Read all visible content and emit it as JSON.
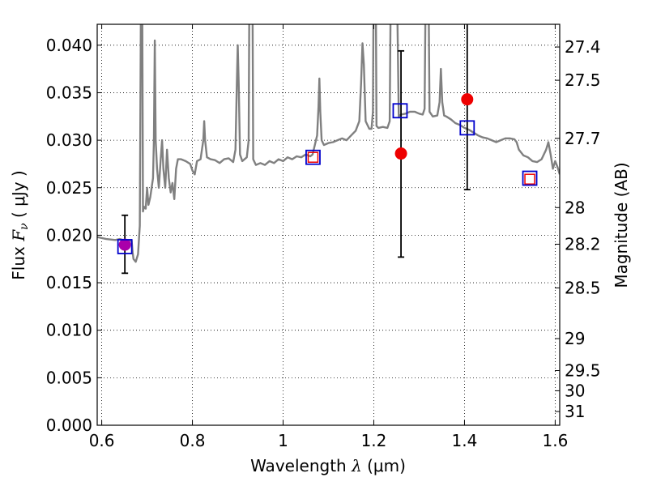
{
  "chart_data": {
    "type": "scatter",
    "xlabel": "Wavelength",
    "xlabel_symbol": "λ",
    "xlabel_unit": "(μm)",
    "ylabel_prefix": "Flux",
    "ylabel_symbol": "F",
    "ylabel_subscript": "ν",
    "ylabel_unit": "( μJy )",
    "y2label": "Magnitude (AB)",
    "xlim": [
      0.59,
      1.61
    ],
    "ylim": [
      0.0,
      0.0422
    ],
    "grid": true,
    "x_ticks": [
      {
        "value": 0.6,
        "label": "0.6"
      },
      {
        "value": 0.8,
        "label": "0.8"
      },
      {
        "value": 1.0,
        "label": "1"
      },
      {
        "value": 1.2,
        "label": "1.2"
      },
      {
        "value": 1.4,
        "label": "1.4"
      },
      {
        "value": 1.6,
        "label": "1.6"
      }
    ],
    "y_ticks": [
      {
        "value": 0.0,
        "label": "0.000"
      },
      {
        "value": 0.005,
        "label": "0.005"
      },
      {
        "value": 0.01,
        "label": "0.010"
      },
      {
        "value": 0.015,
        "label": "0.015"
      },
      {
        "value": 0.02,
        "label": "0.020"
      },
      {
        "value": 0.025,
        "label": "0.025"
      },
      {
        "value": 0.03,
        "label": "0.030"
      },
      {
        "value": 0.035,
        "label": "0.035"
      },
      {
        "value": 0.04,
        "label": "0.040"
      }
    ],
    "y2_ticks": [
      {
        "value": 27.4,
        "label": "27.4"
      },
      {
        "value": 27.5,
        "label": "27.5"
      },
      {
        "value": 27.7,
        "label": "27.7"
      },
      {
        "value": 28.0,
        "label": "28"
      },
      {
        "value": 28.2,
        "label": "28.2"
      },
      {
        "value": 28.5,
        "label": "28.5"
      },
      {
        "value": 29.0,
        "label": "29"
      },
      {
        "value": 29.5,
        "label": "29.5"
      },
      {
        "value": 30.0,
        "label": "30"
      },
      {
        "value": 31.0,
        "label": "31"
      }
    ],
    "model_spectrum": {
      "color": "#808080",
      "points": [
        [
          0.59,
          0.0198
        ],
        [
          0.61,
          0.0196
        ],
        [
          0.63,
          0.0195
        ],
        [
          0.64,
          0.0196
        ],
        [
          0.655,
          0.0194
        ],
        [
          0.662,
          0.0194
        ],
        [
          0.666,
          0.0195
        ],
        [
          0.668,
          0.0182
        ],
        [
          0.67,
          0.0175
        ],
        [
          0.675,
          0.0172
        ],
        [
          0.68,
          0.018
        ],
        [
          0.684,
          0.021
        ],
        [
          0.687,
          0.05
        ],
        [
          0.689,
          0.05
        ],
        [
          0.691,
          0.0225
        ],
        [
          0.693,
          0.023
        ],
        [
          0.697,
          0.0228
        ],
        [
          0.7,
          0.025
        ],
        [
          0.703,
          0.0232
        ],
        [
          0.707,
          0.024
        ],
        [
          0.71,
          0.025
        ],
        [
          0.713,
          0.026
        ],
        [
          0.715,
          0.03
        ],
        [
          0.717,
          0.0405
        ],
        [
          0.719,
          0.03
        ],
        [
          0.722,
          0.027
        ],
        [
          0.726,
          0.025
        ],
        [
          0.73,
          0.028
        ],
        [
          0.733,
          0.03
        ],
        [
          0.736,
          0.027
        ],
        [
          0.74,
          0.025
        ],
        [
          0.744,
          0.029
        ],
        [
          0.748,
          0.026
        ],
        [
          0.752,
          0.0245
        ],
        [
          0.756,
          0.0255
        ],
        [
          0.76,
          0.0238
        ],
        [
          0.764,
          0.027
        ],
        [
          0.768,
          0.028
        ],
        [
          0.775,
          0.028
        ],
        [
          0.785,
          0.0278
        ],
        [
          0.795,
          0.0275
        ],
        [
          0.8,
          0.0268
        ],
        [
          0.805,
          0.0264
        ],
        [
          0.81,
          0.0278
        ],
        [
          0.818,
          0.028
        ],
        [
          0.824,
          0.03
        ],
        [
          0.826,
          0.032
        ],
        [
          0.828,
          0.03
        ],
        [
          0.832,
          0.0282
        ],
        [
          0.84,
          0.028
        ],
        [
          0.85,
          0.0279
        ],
        [
          0.86,
          0.0276
        ],
        [
          0.87,
          0.028
        ],
        [
          0.88,
          0.0281
        ],
        [
          0.89,
          0.0277
        ],
        [
          0.895,
          0.029
        ],
        [
          0.898,
          0.036
        ],
        [
          0.9,
          0.04
        ],
        [
          0.902,
          0.036
        ],
        [
          0.905,
          0.0285
        ],
        [
          0.91,
          0.0278
        ],
        [
          0.915,
          0.028
        ],
        [
          0.92,
          0.0282
        ],
        [
          0.924,
          0.03
        ],
        [
          0.926,
          0.05
        ],
        [
          0.932,
          0.05
        ],
        [
          0.934,
          0.028
        ],
        [
          0.94,
          0.0274
        ],
        [
          0.95,
          0.0276
        ],
        [
          0.96,
          0.0274
        ],
        [
          0.97,
          0.0278
        ],
        [
          0.98,
          0.0276
        ],
        [
          0.99,
          0.028
        ],
        [
          1.0,
          0.0278
        ],
        [
          1.01,
          0.0282
        ],
        [
          1.02,
          0.028
        ],
        [
          1.03,
          0.0283
        ],
        [
          1.04,
          0.0282
        ],
        [
          1.05,
          0.0285
        ],
        [
          1.06,
          0.0283
        ],
        [
          1.065,
          0.0285
        ],
        [
          1.07,
          0.0295
        ],
        [
          1.075,
          0.0305
        ],
        [
          1.078,
          0.0335
        ],
        [
          1.08,
          0.0365
        ],
        [
          1.082,
          0.033
        ],
        [
          1.085,
          0.03
        ],
        [
          1.09,
          0.0295
        ],
        [
          1.1,
          0.0297
        ],
        [
          1.11,
          0.0298
        ],
        [
          1.12,
          0.03
        ],
        [
          1.13,
          0.0302
        ],
        [
          1.14,
          0.03
        ],
        [
          1.15,
          0.0305
        ],
        [
          1.16,
          0.031
        ],
        [
          1.168,
          0.032
        ],
        [
          1.172,
          0.036
        ],
        [
          1.175,
          0.0402
        ],
        [
          1.178,
          0.038
        ],
        [
          1.182,
          0.032
        ],
        [
          1.19,
          0.0312
        ],
        [
          1.195,
          0.0312
        ],
        [
          1.198,
          0.033
        ],
        [
          1.2,
          0.05
        ],
        [
          1.204,
          0.05
        ],
        [
          1.206,
          0.0315
        ],
        [
          1.21,
          0.0313
        ],
        [
          1.22,
          0.0314
        ],
        [
          1.23,
          0.0313
        ],
        [
          1.235,
          0.032
        ],
        [
          1.238,
          0.05
        ],
        [
          1.25,
          0.05
        ],
        [
          1.255,
          0.0325
        ],
        [
          1.26,
          0.0327
        ],
        [
          1.27,
          0.0328
        ],
        [
          1.28,
          0.033
        ],
        [
          1.29,
          0.033
        ],
        [
          1.3,
          0.0328
        ],
        [
          1.308,
          0.0327
        ],
        [
          1.312,
          0.0333
        ],
        [
          1.315,
          0.05
        ],
        [
          1.32,
          0.05
        ],
        [
          1.323,
          0.033
        ],
        [
          1.33,
          0.0325
        ],
        [
          1.34,
          0.0326
        ],
        [
          1.345,
          0.034
        ],
        [
          1.348,
          0.0375
        ],
        [
          1.351,
          0.034
        ],
        [
          1.355,
          0.0326
        ],
        [
          1.36,
          0.0325
        ],
        [
          1.37,
          0.0322
        ],
        [
          1.38,
          0.0318
        ],
        [
          1.39,
          0.0316
        ],
        [
          1.4,
          0.0313
        ],
        [
          1.41,
          0.0311
        ],
        [
          1.42,
          0.0308
        ],
        [
          1.43,
          0.0305
        ],
        [
          1.44,
          0.0303
        ],
        [
          1.45,
          0.0302
        ],
        [
          1.46,
          0.03
        ],
        [
          1.47,
          0.0298
        ],
        [
          1.48,
          0.03
        ],
        [
          1.49,
          0.0302
        ],
        [
          1.5,
          0.0302
        ],
        [
          1.51,
          0.0301
        ],
        [
          1.515,
          0.0298
        ],
        [
          1.52,
          0.029
        ],
        [
          1.53,
          0.0284
        ],
        [
          1.54,
          0.0282
        ],
        [
          1.55,
          0.0278
        ],
        [
          1.56,
          0.0277
        ],
        [
          1.57,
          0.028
        ],
        [
          1.58,
          0.029
        ],
        [
          1.585,
          0.0298
        ],
        [
          1.59,
          0.0285
        ],
        [
          1.595,
          0.027
        ],
        [
          1.6,
          0.0278
        ],
        [
          1.605,
          0.0272
        ],
        [
          1.61,
          0.0264
        ]
      ]
    },
    "model_bands": {
      "marker": "open-square",
      "color": "#0000cc",
      "points": [
        {
          "x": 0.651,
          "y": 0.0188
        },
        {
          "x": 1.066,
          "y": 0.0282
        },
        {
          "x": 1.258,
          "y": 0.0331
        },
        {
          "x": 1.406,
          "y": 0.0313
        },
        {
          "x": 1.544,
          "y": 0.026
        }
      ]
    },
    "detections": {
      "marker": "filled-circle",
      "color": "#ee0000",
      "points": [
        {
          "x": 0.651,
          "y": 0.019,
          "err_low": 0.016,
          "err_high": 0.0221
        },
        {
          "x": 1.26,
          "y": 0.0286,
          "err_low": 0.0177,
          "err_high": 0.0394
        },
        {
          "x": 1.406,
          "y": 0.0343,
          "err_low": 0.0248,
          "err_high": 0.05
        }
      ]
    },
    "upper_limits": {
      "marker": "open-square",
      "color": "#ee0000",
      "points": [
        {
          "x": 1.066,
          "y": 0.0282
        },
        {
          "x": 1.544,
          "y": 0.0259
        }
      ]
    },
    "overlap_color": "#aa00aa"
  }
}
